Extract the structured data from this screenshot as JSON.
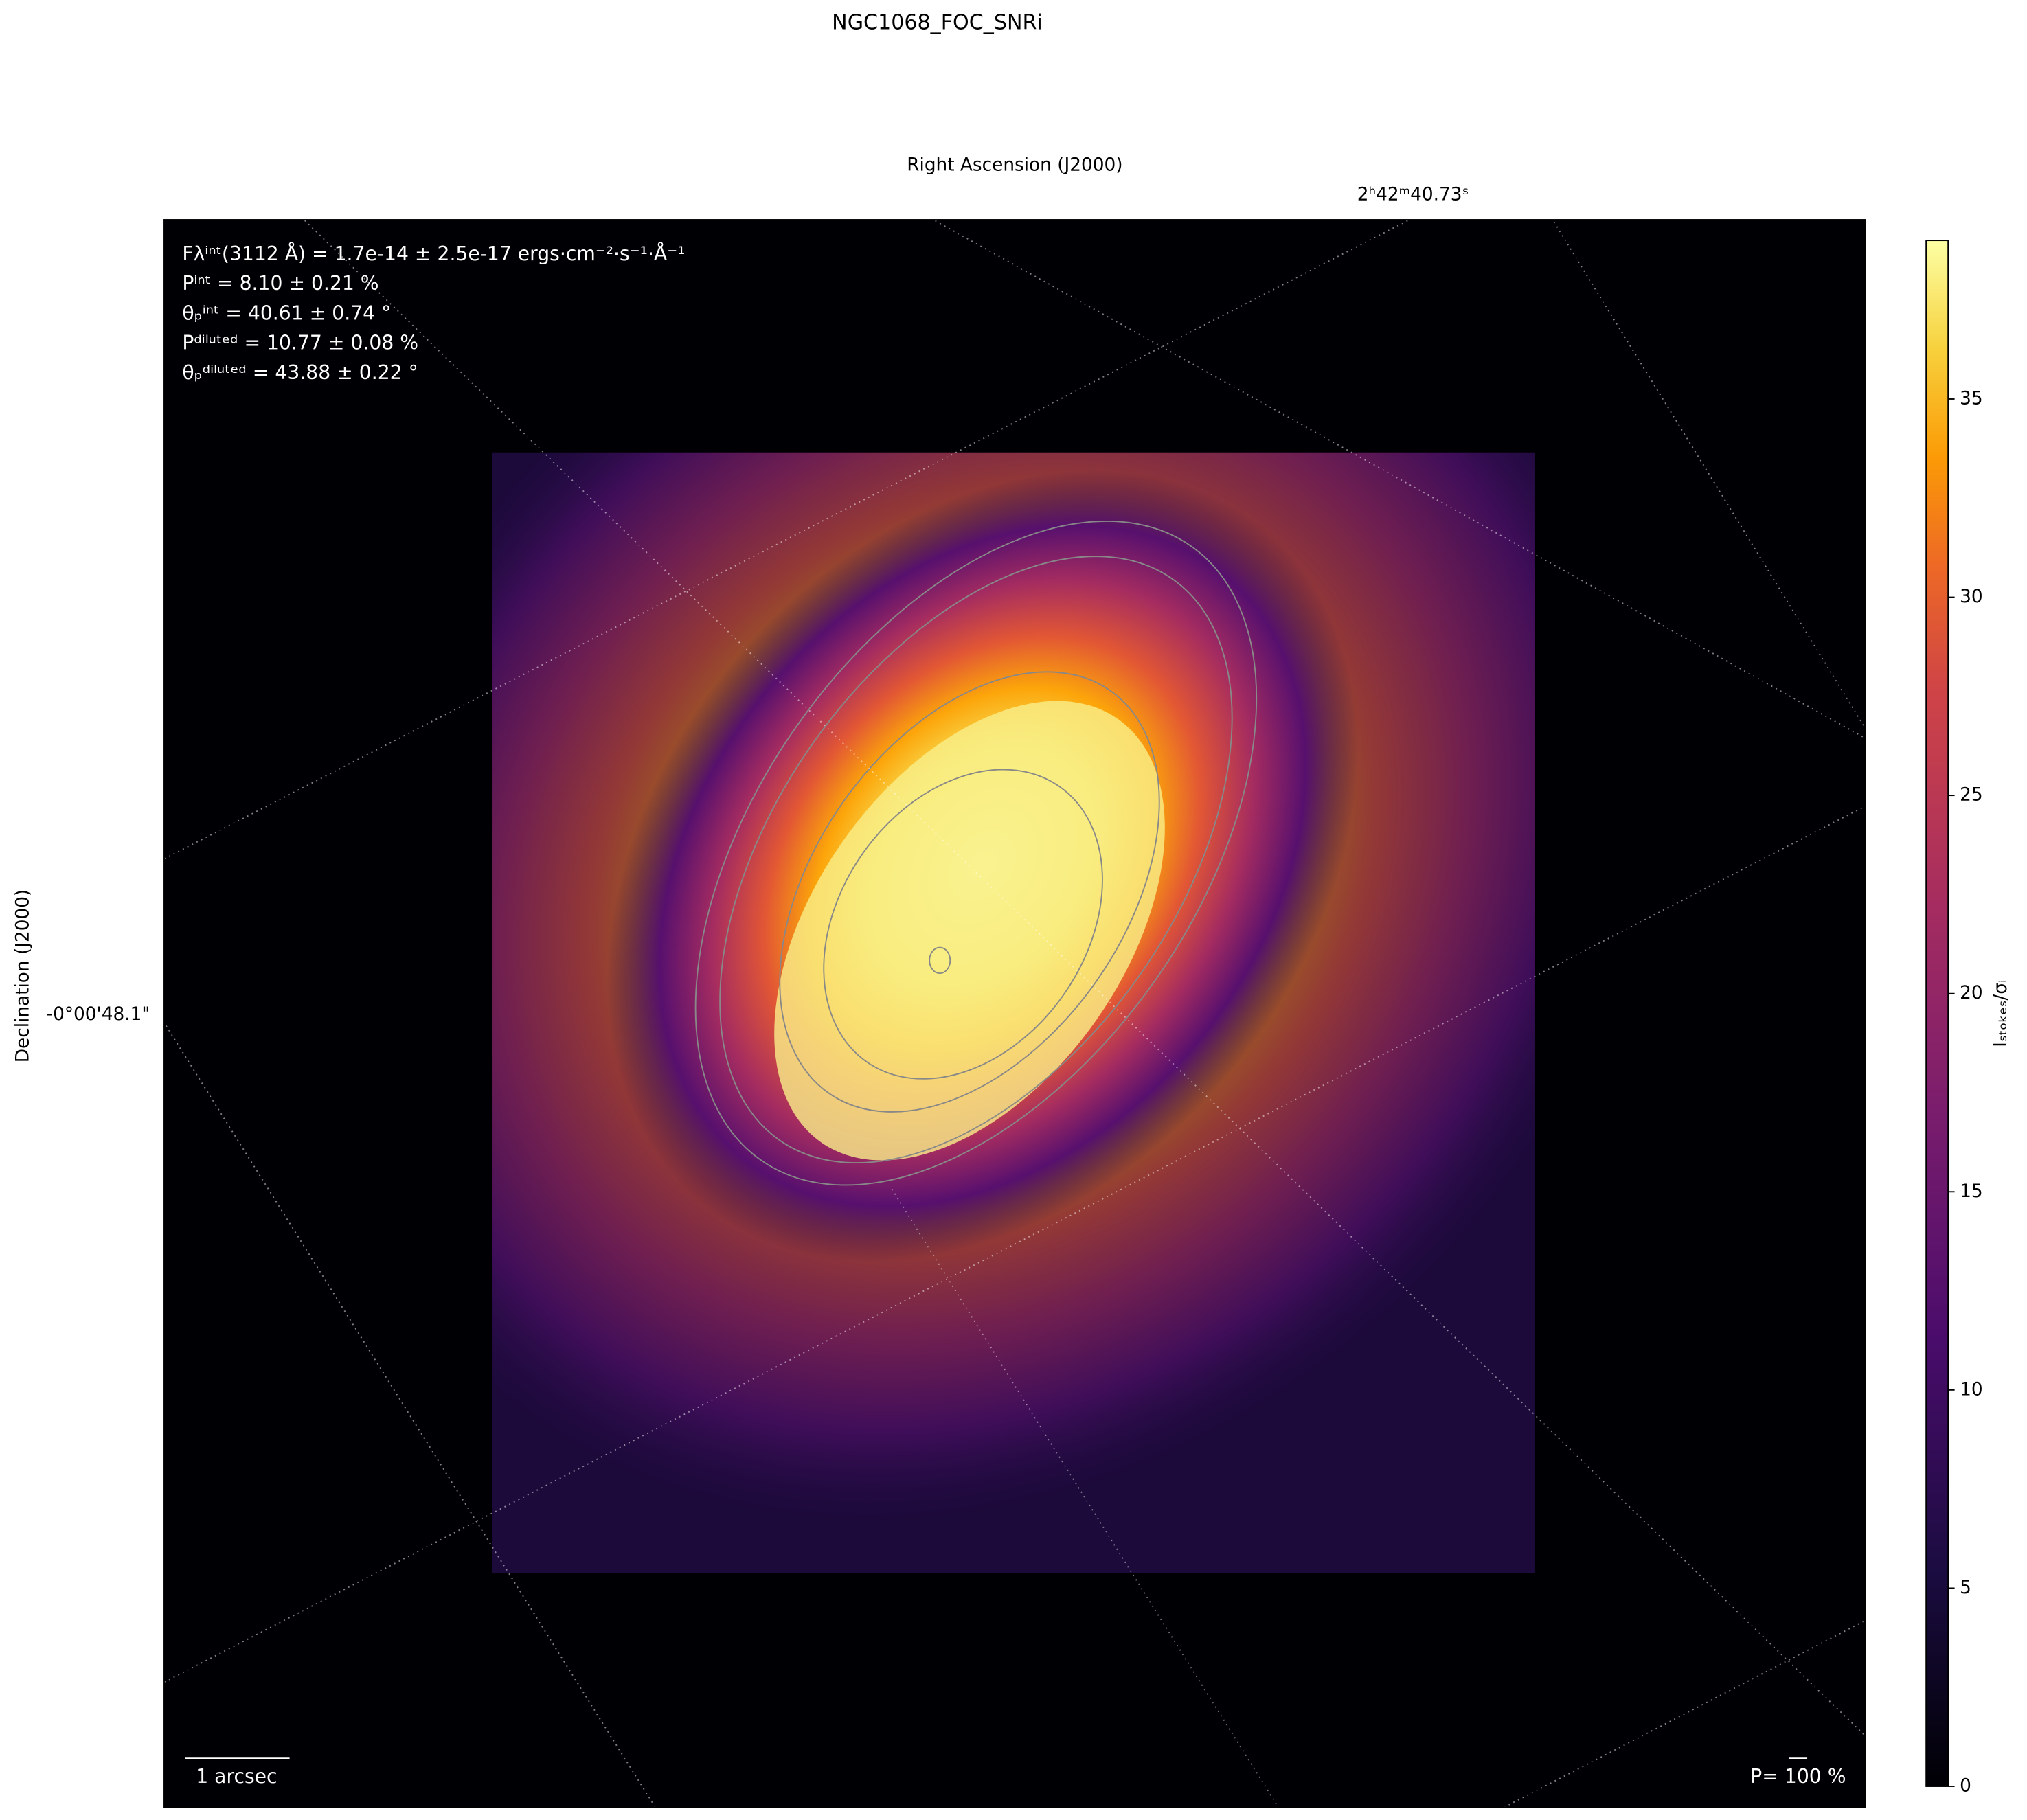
{
  "chart_data": {
    "type": "image",
    "title": "NGC1068_FOC_SNRi",
    "xlabel": "Right Ascension (J2000)",
    "ylabel": "Declination (J2000)",
    "xtick_label": "2ʰ42ᵐ40.73ˢ",
    "ytick_label": "-0°00'48.1\"",
    "colorbar": {
      "label": "Iₛₜₒₖₑₛ/σᵢ",
      "lim": [
        0,
        39
      ],
      "ticks": [
        0,
        5,
        10,
        15,
        20,
        25,
        30,
        35
      ],
      "cmap": "inferno"
    },
    "annotations": [
      "Fλⁱⁿᵗ(3112 Å) = 1.7e-14 ± 2.5e-17 ergs·cm⁻²·s⁻¹·Å⁻¹",
      "Pⁱⁿᵗ = 8.10 ± 0.21 %",
      "θₚⁱⁿᵗ = 40.61 ± 0.74 °",
      "Pᵈⁱˡᵘᵗᵉᵈ = 10.77 ± 0.08 %",
      "θₚᵈⁱˡᵘᵗᵉᵈ = 43.88 ± 0.22 °"
    ],
    "scale_bar": "1 arcsec",
    "vector_scale": "P= 100 %"
  }
}
